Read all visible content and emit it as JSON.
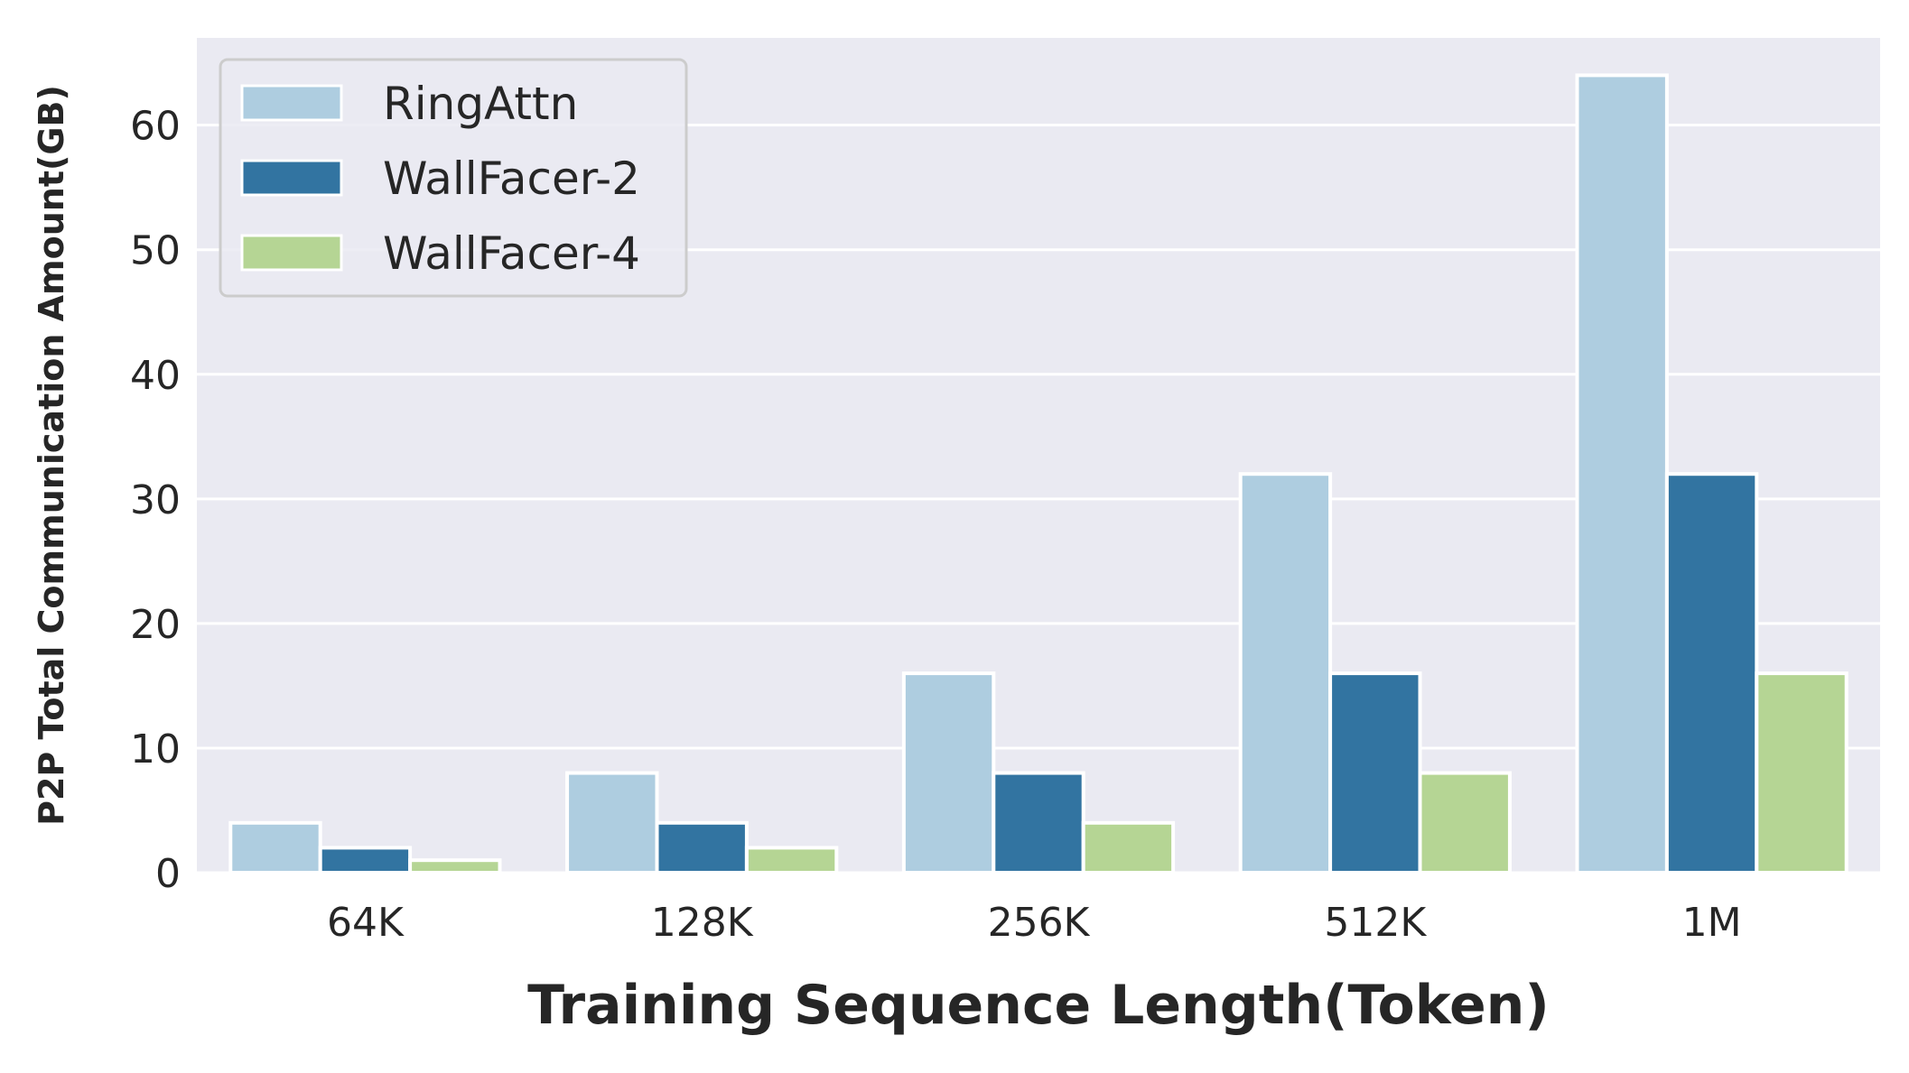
{
  "chart_data": {
    "type": "bar",
    "title": "",
    "xlabel": "Training Sequence Length(Token)",
    "ylabel": "P2P Total Communication Amount(GB)",
    "categories": [
      "64K",
      "128K",
      "256K",
      "512K",
      "1M"
    ],
    "series": [
      {
        "name": "RingAttn",
        "color": "#aecde0",
        "values": [
          4,
          8,
          16,
          32,
          64
        ]
      },
      {
        "name": "WallFacer-2",
        "color": "#3274a1",
        "values": [
          2,
          4,
          8,
          16,
          32
        ]
      },
      {
        "name": "WallFacer-4",
        "color": "#b5d594",
        "values": [
          1,
          2,
          4,
          8,
          16
        ]
      }
    ],
    "ylim": [
      0,
      67
    ],
    "yticks": [
      0,
      10,
      20,
      30,
      40,
      50,
      60
    ],
    "grid": true,
    "legend_position": "top-left",
    "background_color": "#eaeaf2",
    "grid_color": "#ffffff"
  }
}
